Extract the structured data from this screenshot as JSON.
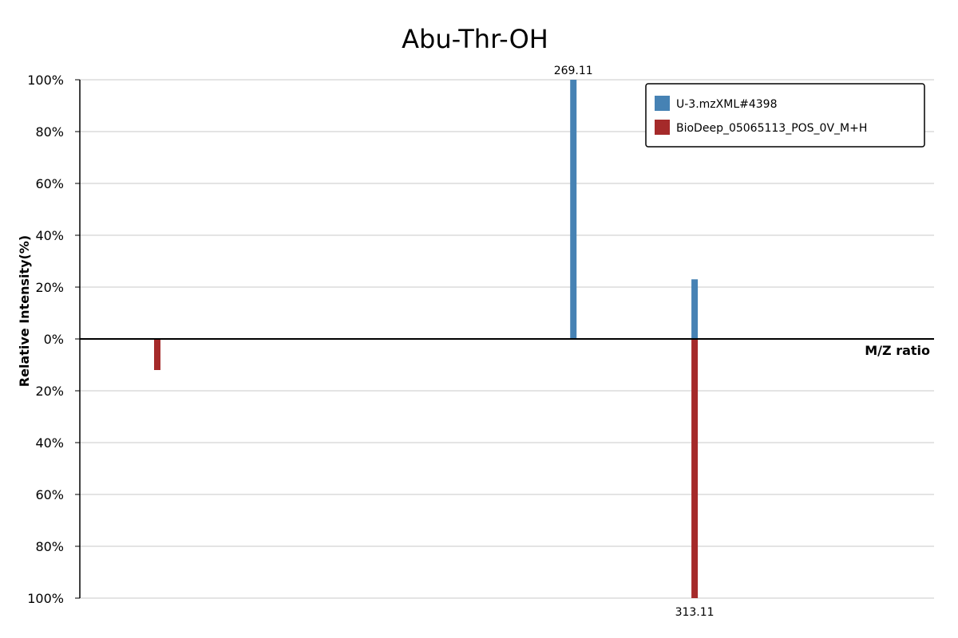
{
  "chart_data": {
    "type": "bar",
    "title": "Abu-Thr-OH",
    "xlabel": "M/Z ratio",
    "ylabel": "Relative Intensity(%)",
    "ylim": [
      -100,
      100
    ],
    "y_ticks": [
      "100%",
      "80%",
      "60%",
      "40%",
      "20%",
      "0%",
      "20%",
      "40%",
      "60%",
      "80%",
      "100%"
    ],
    "grid": true,
    "legend_position": "top-right",
    "series": [
      {
        "name": "U-3.mzXML#4398",
        "color": "#4682b4",
        "direction": "up",
        "peaks": [
          {
            "mz": 269.11,
            "intensity": 100,
            "label": "269.11"
          },
          {
            "mz": 313.11,
            "intensity": 23,
            "label": ""
          }
        ]
      },
      {
        "name": "BioDeep_05065113_POS_0V_M+H",
        "color": "#a52a2a",
        "direction": "down",
        "peaks": [
          {
            "mz": 118.1,
            "intensity": 12,
            "label": ""
          },
          {
            "mz": 313.11,
            "intensity": 100,
            "label": "313.11"
          }
        ]
      }
    ]
  }
}
